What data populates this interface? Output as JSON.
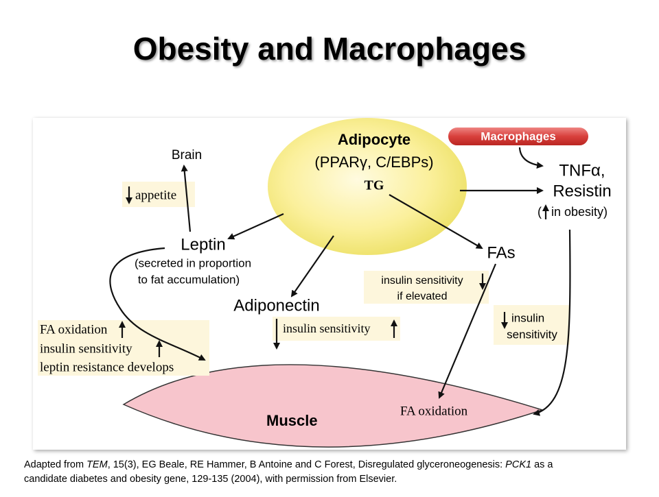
{
  "title": "Obesity and Macrophages",
  "nodes": {
    "adipocyte": {
      "label": "Adipocyte",
      "sublabel": "(PPARγ, C/EBPs)",
      "content": "TG"
    },
    "macrophages": {
      "label": "Macrophages"
    },
    "tnf": {
      "lines": [
        "TNFα,",
        "Resistin"
      ],
      "note_open": "(",
      "note": "in obesity)"
    },
    "brain": {
      "label": "Brain"
    },
    "appetite": {
      "label": "appetite"
    },
    "leptin": {
      "label": "Leptin",
      "lines": [
        "(secreted in proportion",
        "to fat accumulation)"
      ]
    },
    "fas": {
      "label": "FAs",
      "lines": [
        "insulin sensitivity",
        "if elevated"
      ]
    },
    "adiponectin": {
      "label": "Adiponectin",
      "effect": "insulin sensitivity"
    },
    "resistin_effect": {
      "lines": [
        "insulin",
        "sensitivity"
      ]
    },
    "leptin_effects": {
      "lines": [
        "FA oxidation",
        "insulin sensitivity",
        "leptin resistance develops"
      ]
    },
    "muscle": {
      "label": "Muscle",
      "content": "FA oxidation"
    }
  },
  "caption": [
    "Adapted from ",
    "TEM",
    ", 15(3), EG Beale, RE Hammer, B Antoine and C Forest, Disregulated glyceroneogenesis: ",
    "PCK1",
    " as a",
    "candidate diabetes and obesity gene, 129-135 (2004), with permission from Elsevier."
  ]
}
